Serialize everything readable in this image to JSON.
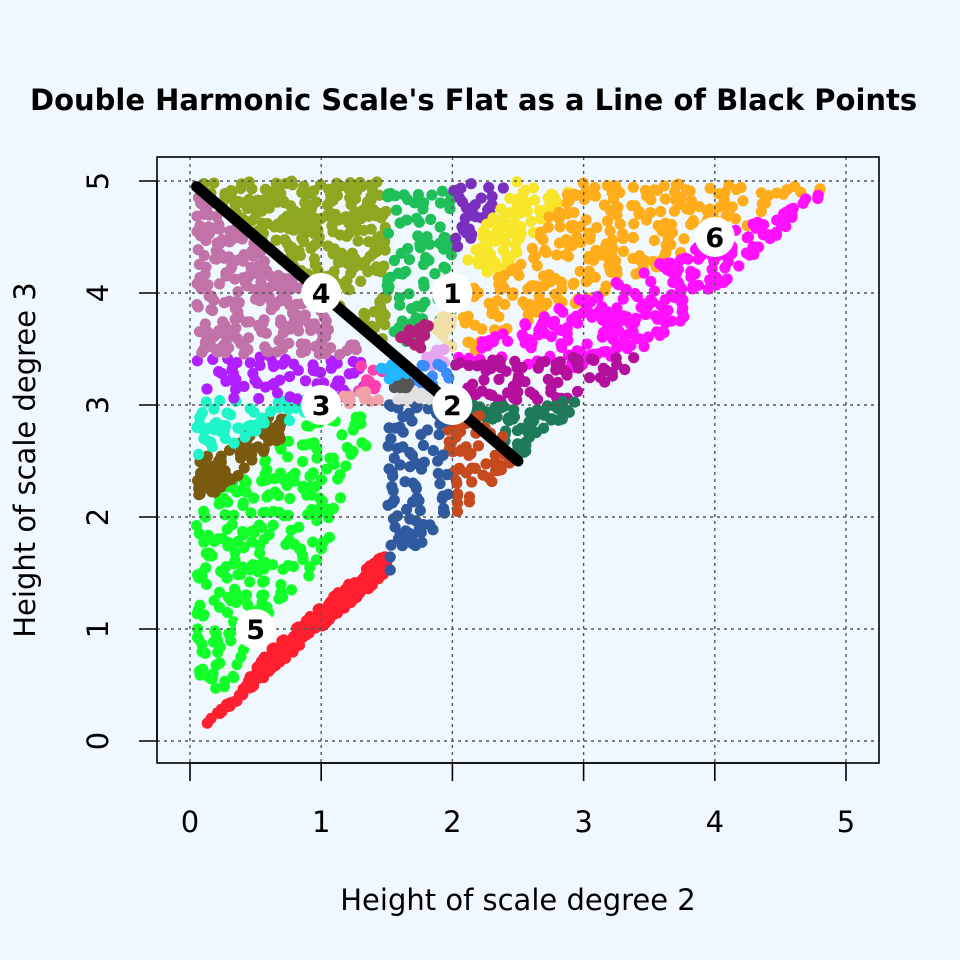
{
  "chart_data": {
    "type": "scatter",
    "title": "Double Harmonic Scale's Flat as a Line of Black Points",
    "xlabel": "Height of scale degree 2",
    "ylabel": "Height of scale degree 3",
    "xlim": [
      -0.25,
      5.25
    ],
    "ylim": [
      -0.2,
      5.2
    ],
    "xticks": [
      "0",
      "1",
      "2",
      "3",
      "4",
      "5"
    ],
    "yticks": [
      "0",
      "1",
      "2",
      "3",
      "4",
      "5"
    ],
    "grid": true,
    "black_line": {
      "from": [
        0.05,
        4.95
      ],
      "to": [
        2.5,
        2.5
      ]
    },
    "region_labels": [
      {
        "label": "1",
        "x": 2,
        "y": 4
      },
      {
        "label": "2",
        "x": 2,
        "y": 3
      },
      {
        "label": "3",
        "x": 1,
        "y": 3
      },
      {
        "label": "4",
        "x": 1,
        "y": 4
      },
      {
        "label": "5",
        "x": 0.5,
        "y": 1
      },
      {
        "label": "6",
        "x": 4,
        "y": 4.5
      }
    ],
    "regions": [
      {
        "color": "#ff1f2f",
        "poly": [
          [
            0.05,
            0.05
          ],
          [
            1.5,
            1.5
          ],
          [
            1.5,
            1.7
          ],
          [
            1.0,
            1.2
          ],
          [
            0.6,
            0.8
          ],
          [
            0.35,
            0.4
          ],
          [
            0.15,
            0.2
          ]
        ]
      },
      {
        "color": "#13ff2a",
        "poly": [
          [
            0.05,
            0.3
          ],
          [
            0.25,
            0.35
          ],
          [
            0.5,
            0.9
          ],
          [
            0.8,
            1.3
          ],
          [
            1.0,
            1.6
          ],
          [
            1.2,
            2.3
          ],
          [
            1.5,
            3.0
          ],
          [
            1.5,
            2.9
          ],
          [
            1.0,
            2.9
          ],
          [
            0.6,
            2.6
          ],
          [
            0.2,
            2.2
          ],
          [
            0.05,
            2.1
          ]
        ]
      },
      {
        "color": "#7a5a0f",
        "poly": [
          [
            0.05,
            2.1
          ],
          [
            0.3,
            2.3
          ],
          [
            0.85,
            2.85
          ],
          [
            0.6,
            2.9
          ],
          [
            0.2,
            2.55
          ],
          [
            0.05,
            2.55
          ]
        ]
      },
      {
        "color": "#1ef5c9",
        "poly": [
          [
            0.05,
            2.55
          ],
          [
            0.35,
            2.65
          ],
          [
            0.85,
            2.9
          ],
          [
            0.95,
            3.05
          ],
          [
            0.05,
            3.05
          ]
        ]
      },
      {
        "color": "#b01fff",
        "poly": [
          [
            0.05,
            3.05
          ],
          [
            1.3,
            3.05
          ],
          [
            1.4,
            3.4
          ],
          [
            0.05,
            3.45
          ]
        ]
      },
      {
        "color": "#c172a8",
        "poly": [
          [
            0.05,
            3.45
          ],
          [
            1.35,
            3.45
          ],
          [
            0.05,
            4.95
          ]
        ]
      },
      {
        "color": "#8ea720",
        "poly": [
          [
            0.1,
            5.0
          ],
          [
            1.5,
            5.0
          ],
          [
            1.5,
            3.5
          ],
          [
            1.3,
            3.7
          ],
          [
            0.1,
            4.95
          ]
        ]
      },
      {
        "color": "#1fbf5a",
        "poly": [
          [
            1.5,
            5.0
          ],
          [
            2.0,
            5.0
          ],
          [
            2.0,
            3.7
          ],
          [
            1.7,
            3.55
          ],
          [
            1.5,
            3.55
          ]
        ]
      },
      {
        "color": "#7b2fbf",
        "poly": [
          [
            2.0,
            5.0
          ],
          [
            2.45,
            5.0
          ],
          [
            2.1,
            4.4
          ],
          [
            2.0,
            4.4
          ]
        ]
      },
      {
        "color": "#f7e62a",
        "poly": [
          [
            2.45,
            5.0
          ],
          [
            2.95,
            5.0
          ],
          [
            2.35,
            4.1
          ],
          [
            2.1,
            4.3
          ]
        ]
      },
      {
        "color": "#ffad1a",
        "poly": [
          [
            2.95,
            5.0
          ],
          [
            4.9,
            4.95
          ],
          [
            2.1,
            3.45
          ],
          [
            2.05,
            4.0
          ],
          [
            2.35,
            4.15
          ]
        ]
      },
      {
        "color": "#ff10ff",
        "poly": [
          [
            4.9,
            4.95
          ],
          [
            3.5,
            3.5
          ],
          [
            2.9,
            3.3
          ],
          [
            2.0,
            3.4
          ],
          [
            2.1,
            3.5
          ]
        ]
      },
      {
        "color": "#b3109e",
        "poly": [
          [
            2.0,
            3.4
          ],
          [
            3.5,
            3.45
          ],
          [
            2.9,
            3.0
          ],
          [
            2.1,
            3.05
          ]
        ]
      },
      {
        "color": "#1f7a5a",
        "poly": [
          [
            2.05,
            3.0
          ],
          [
            3.0,
            3.05
          ],
          [
            2.5,
            2.5
          ],
          [
            2.3,
            2.85
          ]
        ]
      },
      {
        "color": "#c74a1f",
        "poly": [
          [
            2.0,
            2.0
          ],
          [
            2.5,
            2.5
          ],
          [
            2.3,
            2.9
          ],
          [
            1.95,
            2.95
          ]
        ]
      },
      {
        "color": "#2f5a9f",
        "poly": [
          [
            1.5,
            1.5
          ],
          [
            2.0,
            2.0
          ],
          [
            1.95,
            2.95
          ],
          [
            1.7,
            3.05
          ],
          [
            1.5,
            3.0
          ]
        ]
      },
      {
        "color": "#f0dfa8",
        "poly": [
          [
            1.85,
            3.5
          ],
          [
            2.0,
            3.45
          ],
          [
            2.0,
            3.85
          ],
          [
            1.85,
            3.75
          ]
        ]
      },
      {
        "color": "#b31f7a",
        "poly": [
          [
            1.6,
            3.5
          ],
          [
            1.85,
            3.5
          ],
          [
            1.85,
            3.75
          ],
          [
            1.6,
            3.65
          ]
        ]
      },
      {
        "color": "#e5a5f2",
        "poly": [
          [
            1.75,
            3.35
          ],
          [
            2.0,
            3.35
          ],
          [
            1.95,
            3.5
          ],
          [
            1.75,
            3.5
          ]
        ]
      },
      {
        "color": "#3a8cff",
        "poly": [
          [
            1.7,
            3.1
          ],
          [
            2.0,
            3.2
          ],
          [
            1.9,
            3.4
          ],
          [
            1.75,
            3.35
          ]
        ]
      },
      {
        "color": "#ff3fb0",
        "poly": [
          [
            1.25,
            3.1
          ],
          [
            1.6,
            3.2
          ],
          [
            1.5,
            3.4
          ],
          [
            1.3,
            3.35
          ]
        ]
      },
      {
        "color": "#f2a0a8",
        "poly": [
          [
            1.15,
            3.0
          ],
          [
            1.5,
            3.05
          ],
          [
            1.35,
            3.15
          ],
          [
            1.15,
            3.1
          ]
        ]
      },
      {
        "color": "#e0e0e0",
        "poly": [
          [
            1.55,
            3.0
          ],
          [
            1.9,
            3.05
          ],
          [
            1.75,
            3.15
          ],
          [
            1.6,
            3.1
          ]
        ]
      },
      {
        "color": "#555555",
        "poly": [
          [
            1.55,
            3.15
          ],
          [
            1.7,
            3.15
          ],
          [
            1.65,
            3.25
          ],
          [
            1.55,
            3.2
          ]
        ]
      },
      {
        "color": "#21b7ff",
        "poly": [
          [
            1.5,
            3.2
          ],
          [
            1.7,
            3.3
          ],
          [
            1.6,
            3.45
          ],
          [
            1.45,
            3.35
          ]
        ]
      }
    ]
  }
}
